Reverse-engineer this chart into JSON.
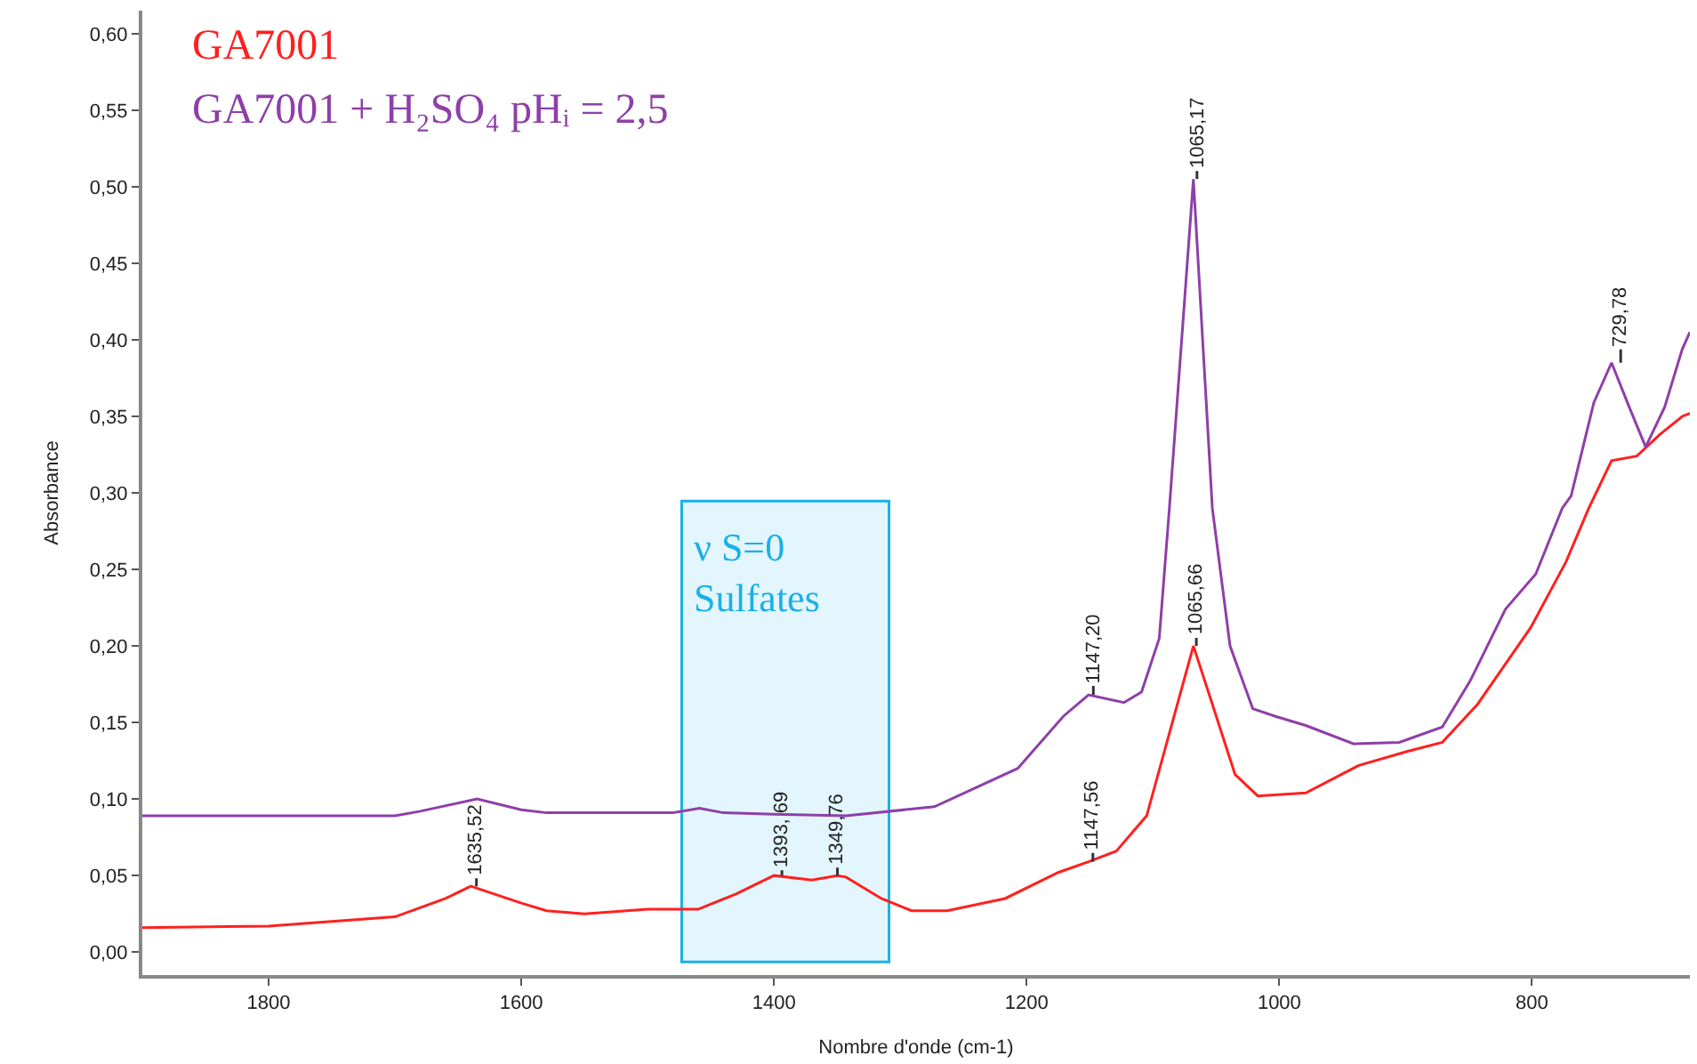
{
  "chart_data": {
    "type": "line",
    "xlabel": "Nombre d'onde (cm-1)",
    "ylabel": "Absorbance",
    "xlim": [
      1900,
      675
    ],
    "ylim": [
      -0.015,
      0.615
    ],
    "xticks": [
      1800,
      1600,
      1400,
      1200,
      1000,
      800
    ],
    "yticks": [
      {
        "value": 0,
        "label": "0,00"
      },
      {
        "value": 0.05,
        "label": "0,05"
      },
      {
        "value": 0.1,
        "label": "0,10"
      },
      {
        "value": 0.15,
        "label": "0,15"
      },
      {
        "value": 0.2,
        "label": "0,20"
      },
      {
        "value": 0.25,
        "label": "0,25"
      },
      {
        "value": 0.3,
        "label": "0,30"
      },
      {
        "value": 0.35,
        "label": "0,35"
      },
      {
        "value": 0.4,
        "label": "0,40"
      },
      {
        "value": 0.45,
        "label": "0,45"
      },
      {
        "value": 0.5,
        "label": "0,50"
      },
      {
        "value": 0.55,
        "label": "0,55"
      },
      {
        "value": 0.6,
        "label": "0,60"
      }
    ],
    "grid": false,
    "legend": "top left",
    "marker": "none",
    "line_style": "solid",
    "series": [
      {
        "name": "GA7001",
        "color": "#ff2020",
        "x": [
          1900,
          1800,
          1700,
          1660,
          1640,
          1600,
          1580,
          1550,
          1500,
          1460,
          1430,
          1400,
          1370,
          1350,
          1343,
          1315,
          1291,
          1263,
          1217,
          1175,
          1151,
          1129,
          1105,
          1087,
          1068,
          1053,
          1035,
          1017,
          979,
          937,
          899,
          871,
          843,
          801,
          773,
          755,
          737,
          717,
          699,
          681,
          675
        ],
        "values": [
          0.016,
          0.017,
          0.023,
          0.035,
          0.043,
          0.032,
          0.027,
          0.025,
          0.028,
          0.028,
          0.038,
          0.05,
          0.047,
          0.05,
          0.049,
          0.035,
          0.027,
          0.027,
          0.035,
          0.052,
          0.059,
          0.066,
          0.089,
          0.143,
          0.2,
          0.162,
          0.116,
          0.102,
          0.104,
          0.122,
          0.131,
          0.137,
          0.162,
          0.212,
          0.255,
          0.29,
          0.321,
          0.324,
          0.338,
          0.35,
          0.352
        ]
      },
      {
        "name": "GA7001 + H₂SO₄ pHᵢ = 2,5",
        "color": "#8e3fa8",
        "x": [
          1900,
          1800,
          1700,
          1680,
          1635,
          1600,
          1580,
          1480,
          1459,
          1440,
          1400,
          1343,
          1273,
          1207,
          1171,
          1151,
          1123,
          1109,
          1095,
          1087,
          1068,
          1053,
          1039,
          1021,
          1003,
          979,
          941,
          905,
          871,
          849,
          821,
          797,
          776,
          769,
          751,
          737,
          723,
          710,
          695,
          681,
          675
        ],
        "values": [
          0.089,
          0.089,
          0.089,
          0.092,
          0.1,
          0.093,
          0.091,
          0.091,
          0.094,
          0.091,
          0.09,
          0.089,
          0.095,
          0.12,
          0.154,
          0.168,
          0.163,
          0.17,
          0.205,
          0.29,
          0.505,
          0.29,
          0.2,
          0.159,
          0.154,
          0.148,
          0.136,
          0.137,
          0.147,
          0.177,
          0.224,
          0.247,
          0.29,
          0.298,
          0.359,
          0.385,
          0.356,
          0.33,
          0.356,
          0.394,
          0.405
        ]
      }
    ],
    "bands": [
      {
        "axis": "x",
        "from": 1472,
        "to": 1310,
        "label": "ν S=0\nSulfates",
        "color": "#1ab0e8"
      }
    ],
    "annotations": [
      {
        "text": "1635,52",
        "x": 1635.52,
        "y": 0.043
      },
      {
        "text": "1393, 69",
        "x": 1393.69,
        "y": 0.05
      },
      {
        "text": "1349,76",
        "x": 1349.76,
        "y": 0.05
      },
      {
        "text": "1147,20",
        "x": 1147.2,
        "y": 0.168
      },
      {
        "text": "1147,56",
        "x": 1147.56,
        "y": 0.059
      },
      {
        "text": "1065,66",
        "x": 1065.66,
        "y": 0.2
      },
      {
        "text": "1065,17",
        "x": 1065.17,
        "y": 0.505
      },
      {
        "text": "729,78",
        "x": 729.78,
        "y": 0.385
      }
    ]
  }
}
